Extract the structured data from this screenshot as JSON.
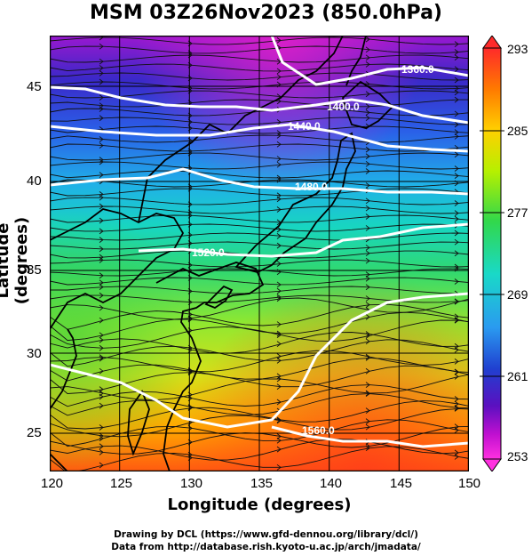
{
  "title": "MSM 03Z26Nov2023 (850.0hPa)",
  "xlabel": "Longitude (degrees)",
  "ylabel": "Latitude  (degrees)",
  "credits": {
    "line1": "Drawing by DCL (https://www.gfd-dennou.org/library/dcl/)",
    "line2": "Data from http://database.rish.kyoto-u.ac.jp/arch/jmadata/"
  },
  "x_ticks": [
    "120",
    "125",
    "130",
    "135",
    "140",
    "145",
    "150"
  ],
  "y_ticks": [
    "45",
    "40",
    "35",
    "30",
    "25"
  ],
  "colorbar": {
    "ticks": [
      "293",
      "285",
      "277",
      "269",
      "261",
      "253"
    ],
    "colors": [
      "#ff2a2a",
      "#ff7a00",
      "#ffd000",
      "#b6f000",
      "#32d84a",
      "#19d9c8",
      "#2a9af0",
      "#2040d0",
      "#5a10c0",
      "#c010d0",
      "#ff30e0"
    ]
  },
  "contour_labels": {
    "c1360": "1360.0",
    "c1400": "1400.0",
    "c1440": "1440.0",
    "c1480": "1480.0",
    "c1520": "1520.0",
    "c1560": "1560.0"
  }
}
